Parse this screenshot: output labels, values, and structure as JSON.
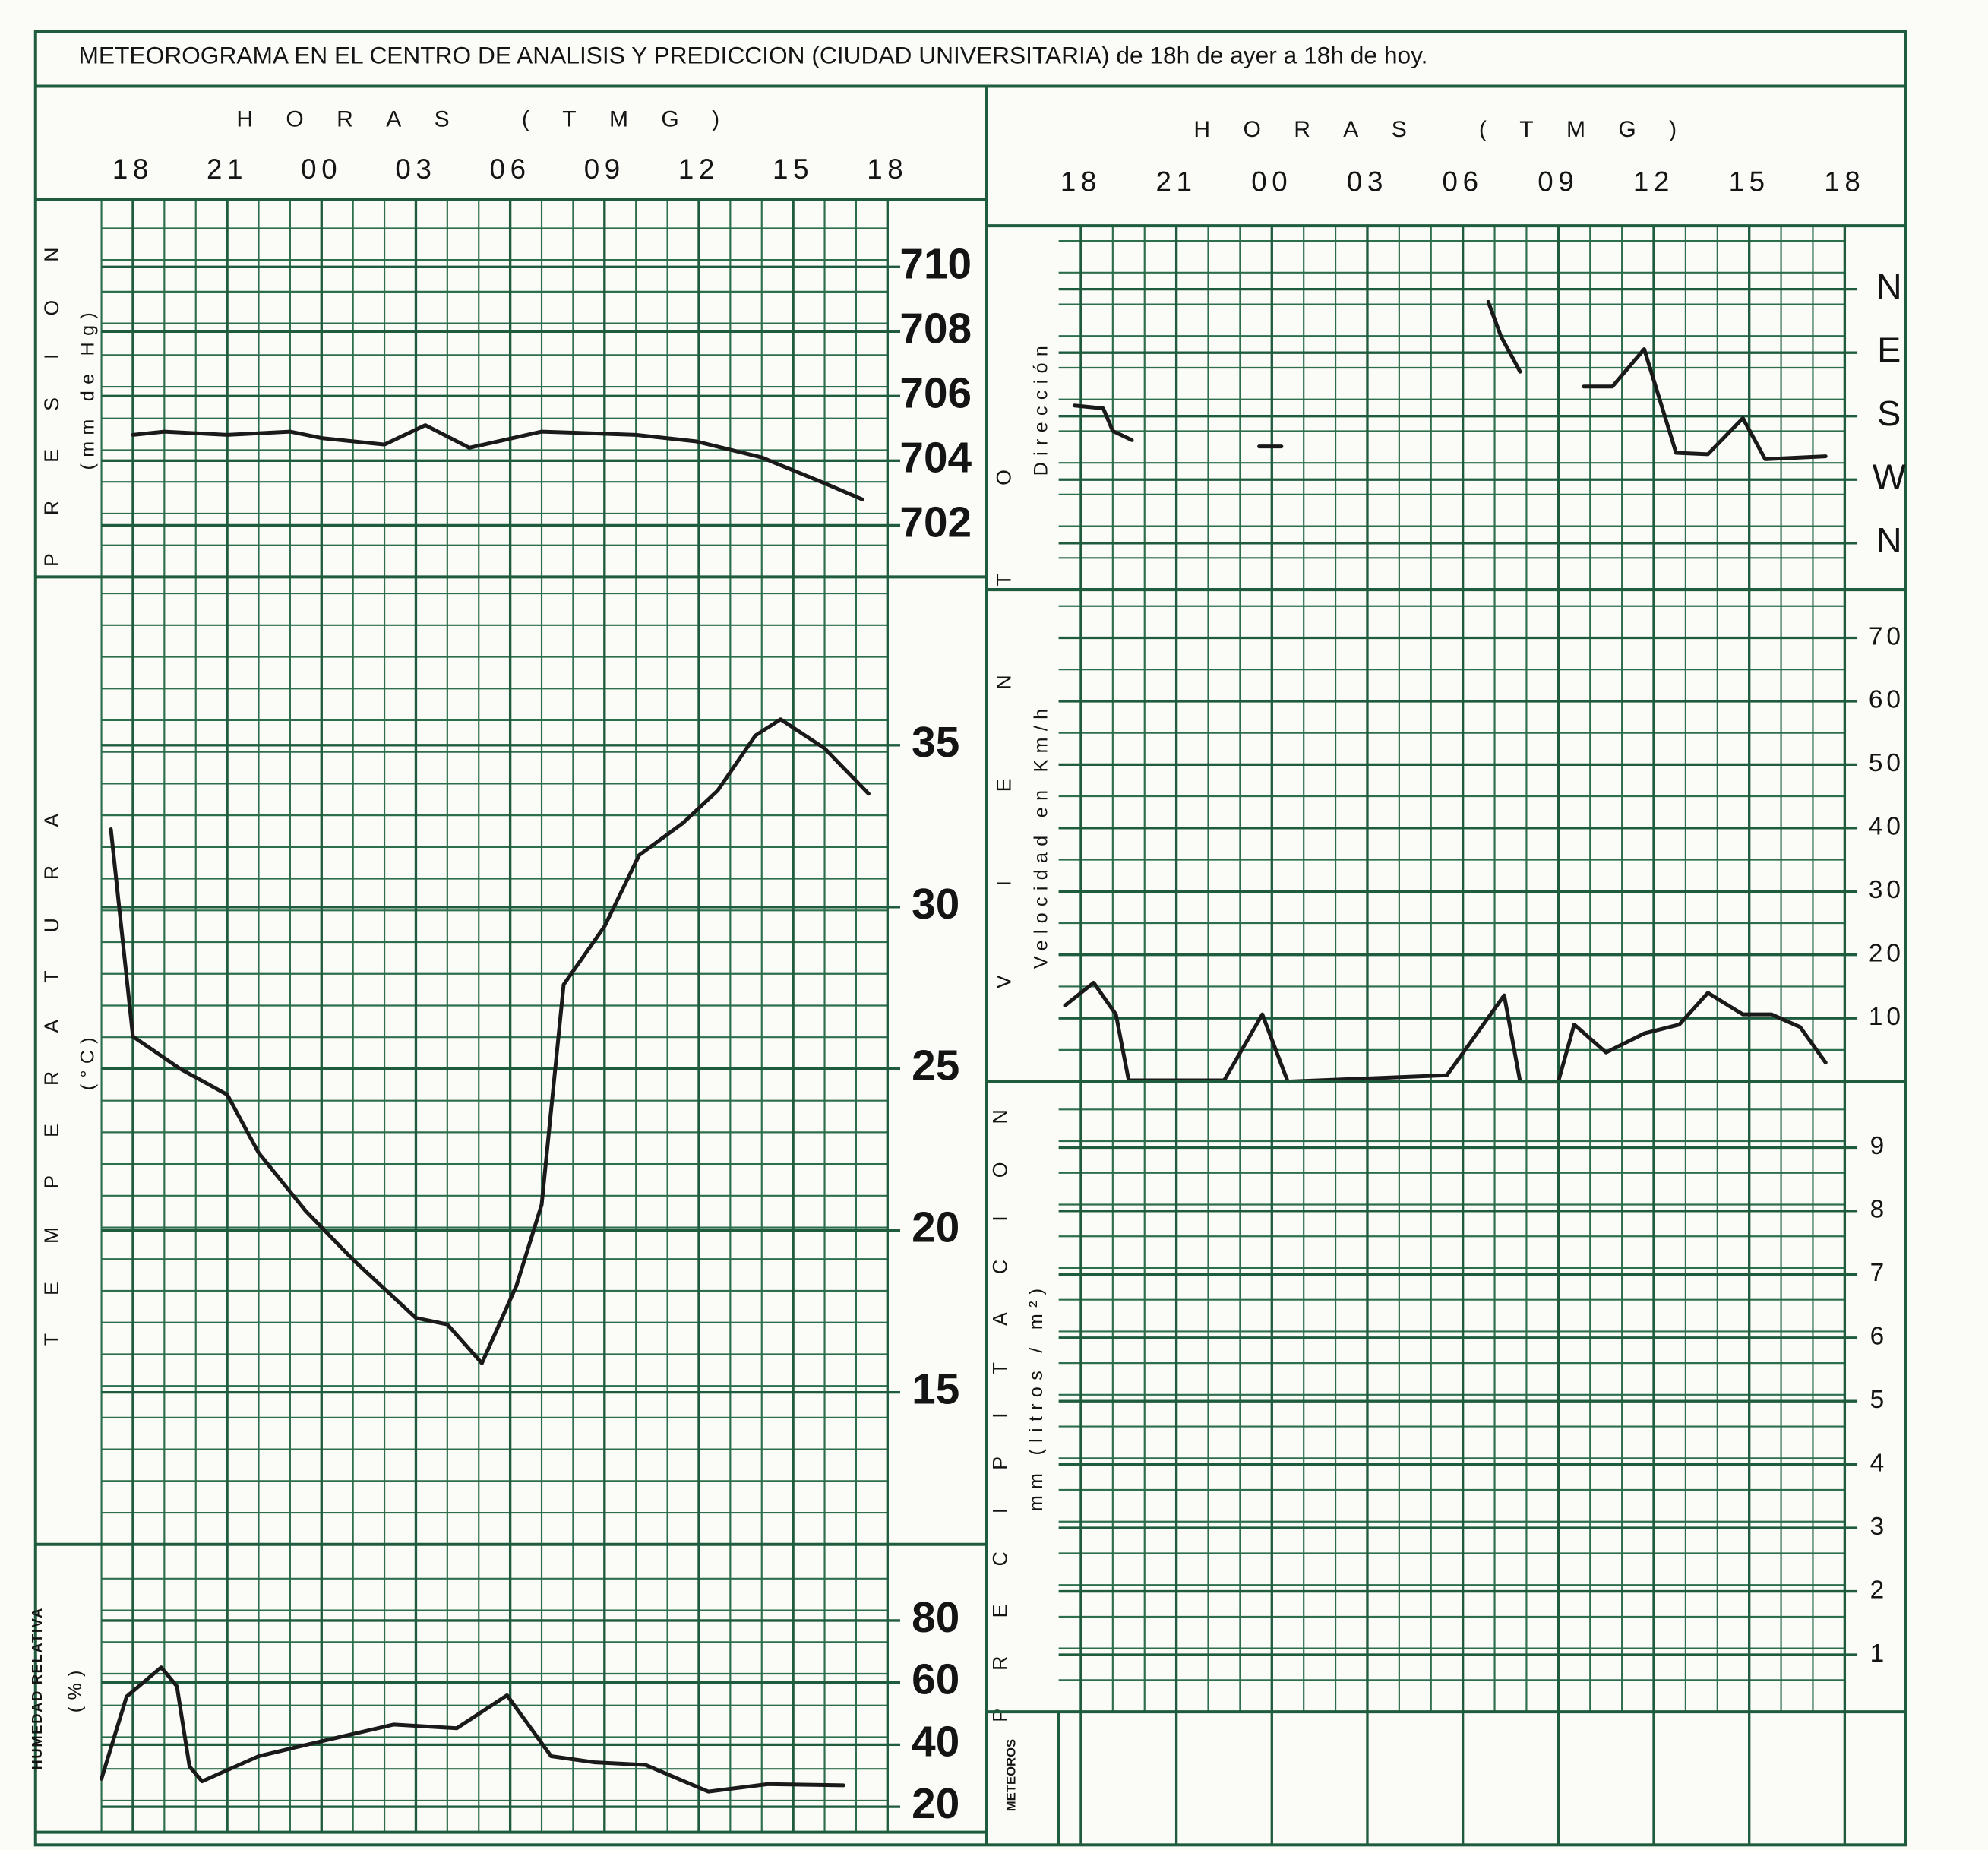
{
  "title": "METEOROGRAMA EN EL CENTRO DE ANALISIS Y PREDICCION (CIUDAD UNIVERSITARIA) de 18h de ayer a 18h de hoy.",
  "meteoros": {
    "label": "METEOROS"
  },
  "chart_data": [
    {
      "type": "line",
      "title": "PRESION",
      "ylabel": "(mm de Hg)",
      "x_label": "HORAS (TMG)",
      "xlim": [
        -1,
        24
      ],
      "xticks": [
        {
          "value": 0,
          "label": "18"
        },
        {
          "value": 3,
          "label": "21"
        },
        {
          "value": 6,
          "label": "00"
        },
        {
          "value": 9,
          "label": "03"
        },
        {
          "value": 12,
          "label": "06"
        },
        {
          "value": 15,
          "label": "09"
        },
        {
          "value": 18,
          "label": "12"
        },
        {
          "value": 21,
          "label": "15"
        },
        {
          "value": 24,
          "label": "18"
        }
      ],
      "ylim": [
        700.4,
        712.1
      ],
      "yticks": [
        710,
        708,
        706,
        704,
        702
      ],
      "grid": true,
      "color": "#1a1a1a",
      "x": [
        0,
        1,
        3,
        5,
        6,
        8,
        9.3,
        10.7,
        13,
        16,
        17.9,
        20,
        22,
        23.2
      ],
      "values": [
        704.8,
        704.9,
        704.8,
        704.9,
        704.7,
        704.5,
        705.1,
        704.4,
        704.9,
        704.8,
        704.6,
        704.1,
        703.3,
        702.8
      ]
    },
    {
      "type": "line",
      "title": "TEMPERATURA",
      "ylabel": "(°C)",
      "ylim": [
        10.3,
        40.2
      ],
      "yticks": [
        35,
        30,
        25,
        20,
        15
      ],
      "grid": true,
      "color": "#1a1a1a",
      "x": [
        -0.7,
        0,
        1.5,
        3,
        4,
        5.5,
        7,
        9,
        10,
        11.1,
        12.2,
        13,
        13.7,
        15,
        16.1,
        17.5,
        18.6,
        19.8,
        20.6,
        22,
        23.4
      ],
      "values": [
        32.4,
        26.0,
        25.0,
        24.2,
        22.4,
        20.6,
        19.1,
        17.3,
        17.1,
        15.9,
        18.3,
        20.8,
        27.6,
        29.4,
        31.6,
        32.6,
        33.6,
        35.3,
        35.8,
        34.9,
        33.5
      ]
    },
    {
      "type": "line",
      "title": "HUMEDAD RELATIVA",
      "ylabel": "(%)",
      "ylim": [
        11.8,
        104.5
      ],
      "yticks": [
        80,
        60,
        40,
        20
      ],
      "grid": true,
      "color": "#1a1a1a",
      "x": [
        -1,
        -0.2,
        0.9,
        1.4,
        1.8,
        2.2,
        4,
        5.7,
        8.3,
        10.3,
        11.9,
        13.3,
        14.7,
        16.3,
        18.3,
        20.2,
        22.6
      ],
      "values": [
        29,
        55.5,
        64.9,
        58.8,
        33,
        28.2,
        36.3,
        40.4,
        46.5,
        45.3,
        55.9,
        36.3,
        34.3,
        33.5,
        24.9,
        27.3,
        26.9
      ]
    },
    {
      "type": "line",
      "title": "VIENTO",
      "ylabel": "Dirección",
      "x_label": "HORAS (TMG)",
      "xlim": [
        -0.7,
        24
      ],
      "xticks": [
        {
          "value": 0,
          "label": "18"
        },
        {
          "value": 3,
          "label": "21"
        },
        {
          "value": 6,
          "label": "00"
        },
        {
          "value": 9,
          "label": "03"
        },
        {
          "value": 12,
          "label": "06"
        },
        {
          "value": 15,
          "label": "09"
        },
        {
          "value": 18,
          "label": "12"
        },
        {
          "value": 21,
          "label": "15"
        },
        {
          "value": 24,
          "label": "18"
        }
      ],
      "ylim": [
        426,
        -90
      ],
      "yticks": [
        {
          "value": 0,
          "label": "N"
        },
        {
          "value": 90,
          "label": "E"
        },
        {
          "value": 180,
          "label": "S"
        },
        {
          "value": 270,
          "label": "W"
        },
        {
          "value": 360,
          "label": "N"
        }
      ],
      "grid": true,
      "color": "#1a1a1a",
      "x": [
        -0.2,
        0.7,
        1.0,
        1.6,
        3,
        5.6,
        6.3,
        10,
        12.8,
        13.2,
        13.8,
        14.5,
        15.8,
        16.7,
        17.7,
        18.7,
        19.7,
        20.8,
        21.5,
        23.4
      ],
      "values": [
        165,
        169,
        201,
        214,
        null,
        223,
        223,
        null,
        18,
        67,
        117,
        null,
        138,
        138,
        85,
        232,
        234,
        183,
        241,
        237
      ]
    },
    {
      "type": "line",
      "ylabel": "Velocidad en Km/h",
      "ylim": [
        0,
        77.6
      ],
      "yticks": [
        70,
        60,
        50,
        40,
        30,
        20,
        10
      ],
      "grid": true,
      "color": "#1a1a1a",
      "x": [
        -0.5,
        0.4,
        1.1,
        1.5,
        4.5,
        5.7,
        6.5,
        11.5,
        13.3,
        13.8,
        15,
        15.5,
        16.5,
        17.7,
        18.8,
        19.7,
        20.8,
        21.7,
        22.6,
        23.4
      ],
      "values": [
        12,
        15.6,
        10.6,
        0.2,
        0.2,
        10.6,
        0,
        1,
        13.6,
        0,
        0,
        9,
        4.6,
        7.6,
        9,
        14,
        10.6,
        10.6,
        8.6,
        3
      ]
    },
    {
      "type": "line",
      "title": "PRECIPITACION",
      "ylabel": "mm (litros / m²)",
      "ylim": [
        0.1,
        10.04
      ],
      "yticks": [
        9,
        8,
        7,
        6,
        5,
        4,
        3,
        2,
        1
      ],
      "grid": true,
      "color": "#1a1a1a",
      "x": [],
      "values": []
    }
  ]
}
